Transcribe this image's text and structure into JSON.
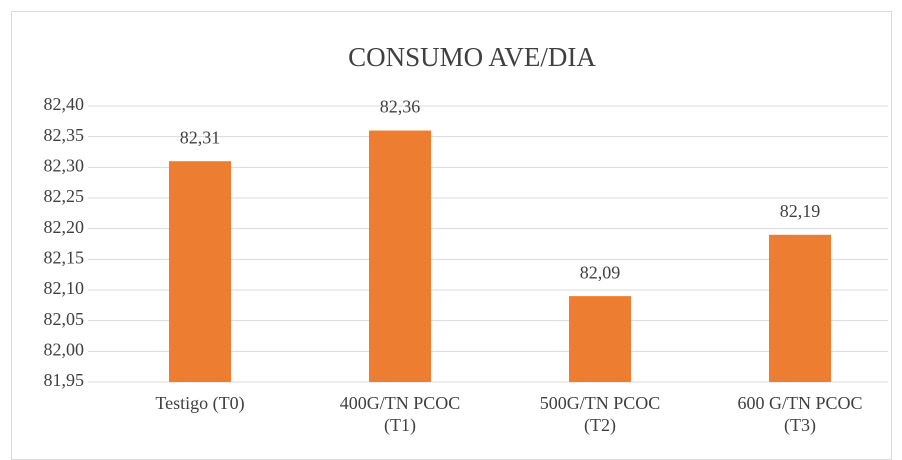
{
  "chart_data": {
    "type": "bar",
    "title": "CONSUMO AVE/DIA",
    "categories": [
      "Testigo (T0)",
      "400G/TN PCOC (T1)",
      "500G/TN PCOC (T2)",
      "600 G/TN PCOC (T3)"
    ],
    "values": [
      82.31,
      82.36,
      82.09,
      82.19
    ],
    "value_labels": [
      "82,31",
      "82,36",
      "82,09",
      "82,19"
    ],
    "color": "#ed7d31",
    "ylim": [
      81.95,
      82.4
    ],
    "yticks": [
      {
        "value": 81.95,
        "label": "81,95"
      },
      {
        "value": 82.0,
        "label": "82,00"
      },
      {
        "value": 82.05,
        "label": "82,05"
      },
      {
        "value": 82.1,
        "label": "82,10"
      },
      {
        "value": 82.15,
        "label": "82,15"
      },
      {
        "value": 82.2,
        "label": "82,20"
      },
      {
        "value": 82.25,
        "label": "82,25"
      },
      {
        "value": 82.3,
        "label": "82,30"
      },
      {
        "value": 82.35,
        "label": "82,35"
      },
      {
        "value": 82.4,
        "label": "82,40"
      }
    ],
    "grid": true
  }
}
